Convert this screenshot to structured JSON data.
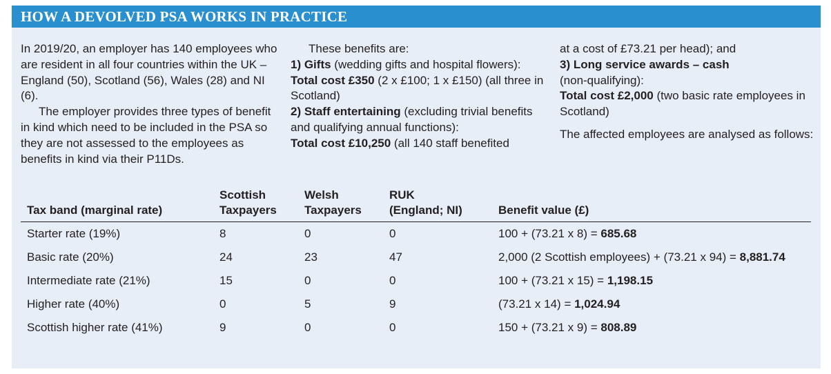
{
  "title": "HOW A DEVOLVED PSA WORKS IN PRACTICE",
  "col1": {
    "p1": "In 2019/20, an employer has 140 employees who are resident in all four countries within the UK – England (50), Scotland (56), Wales (28) and NI (6).",
    "p2": "The employer provides three types of benefit in kind which need to be included in the PSA so they are not assessed to the employees as benefits in kind via their P11Ds."
  },
  "col2": {
    "intro": "These benefits are:",
    "gifts_head": "1) Gifts",
    "gifts_text": " (wedding gifts and hospital flowers):",
    "gifts_cost": "Total cost £350",
    "gifts_cost_text": " (2 x £100; 1 x £150) (all three in Scotland)",
    "staff_head": "2) Staff entertaining",
    "staff_text": " (excluding trivial benefits and qualifying annual functions):",
    "staff_cost": "Total cost £10,250",
    "staff_cost_text": " (all 140 staff benefited"
  },
  "col3": {
    "cont": "at a cost of £73.21 per head); and",
    "long_head": "3) Long service awards – cash",
    "long_text": "(non-qualifying):",
    "long_cost": "Total cost £2,000",
    "long_cost_text": " (two basic rate employees in Scotland)",
    "outro": "The affected employees are analysed as follows:"
  },
  "table": {
    "headers": {
      "band": "Tax band (marginal rate)",
      "scot1": "Scottish",
      "scot2": "Taxpayers",
      "welsh1": "Welsh",
      "welsh2": "Taxpayers",
      "ruk1": "RUK",
      "ruk2": "(England; NI)",
      "value": "Benefit value (£)"
    },
    "rows": [
      {
        "band": "Starter rate (19%)",
        "scot": "8",
        "welsh": "0",
        "ruk": "0",
        "formula": "100 + (73.21 x 8) = ",
        "result": "685.68"
      },
      {
        "band": "Basic rate (20%)",
        "scot": "24",
        "welsh": "23",
        "ruk": "47",
        "formula": "2,000 (2 Scottish employees) + (73.21 x 94) = ",
        "result": "8,881.74"
      },
      {
        "band": "Intermediate rate (21%)",
        "scot": "15",
        "welsh": "0",
        "ruk": "0",
        "formula": "100 + (73.21 x 15) = ",
        "result": "1,198.15"
      },
      {
        "band": "Higher rate (40%)",
        "scot": "0",
        "welsh": "5",
        "ruk": "9",
        "formula": "(73.21 x 14) = ",
        "result": "1,024.94"
      },
      {
        "band": "Scottish higher rate (41%)",
        "scot": "9",
        "welsh": "0",
        "ruk": "0",
        "formula": "150 + (73.21 x 9) = ",
        "result": "808.89"
      }
    ]
  }
}
